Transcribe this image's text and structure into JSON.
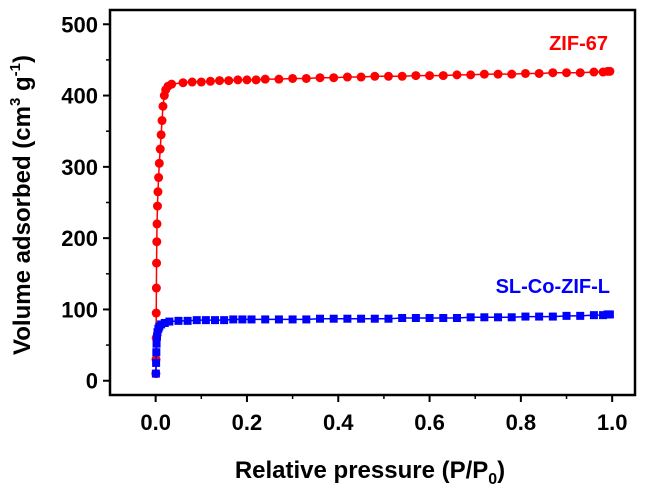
{
  "chart_data": {
    "type": "scatter",
    "title": "",
    "xlabel": {
      "prefix": "Relative pressure (P/P",
      "sub": "0",
      "suffix": ")"
    },
    "ylabel": {
      "prefix": "Volume adsorbed (cm",
      "sup1": "3",
      "mid": " g",
      "sup2": "-1",
      "suffix": ")"
    },
    "xlim": [
      -0.1,
      1.05
    ],
    "ylim": [
      -20,
      520
    ],
    "xticks": [
      "0.0",
      "0.2",
      "0.4",
      "0.6",
      "0.8",
      "1.0"
    ],
    "yticks": [
      "0",
      "100",
      "200",
      "300",
      "400",
      "500"
    ],
    "series": [
      {
        "name": "ZIF-67",
        "color": "#ff0000",
        "marker": "circle",
        "points": [
          [
            0.0005,
            10
          ],
          [
            0.0008,
            30
          ],
          [
            0.001,
            60
          ],
          [
            0.0013,
            95
          ],
          [
            0.0016,
            130
          ],
          [
            0.002,
            165
          ],
          [
            0.0025,
            195
          ],
          [
            0.003,
            220
          ],
          [
            0.004,
            245
          ],
          [
            0.005,
            265
          ],
          [
            0.0065,
            285
          ],
          [
            0.008,
            305
          ],
          [
            0.01,
            325
          ],
          [
            0.012,
            345
          ],
          [
            0.014,
            365
          ],
          [
            0.016,
            385
          ],
          [
            0.019,
            400
          ],
          [
            0.022,
            408
          ],
          [
            0.027,
            413
          ],
          [
            0.035,
            416
          ],
          [
            0.06,
            418
          ],
          [
            0.08,
            419
          ],
          [
            0.1,
            419
          ],
          [
            0.12,
            420
          ],
          [
            0.14,
            421
          ],
          [
            0.16,
            421
          ],
          [
            0.18,
            422
          ],
          [
            0.2,
            422
          ],
          [
            0.22,
            422
          ],
          [
            0.24,
            423
          ],
          [
            0.27,
            423
          ],
          [
            0.3,
            424
          ],
          [
            0.33,
            424
          ],
          [
            0.36,
            425
          ],
          [
            0.39,
            425
          ],
          [
            0.42,
            426
          ],
          [
            0.45,
            426
          ],
          [
            0.48,
            427
          ],
          [
            0.51,
            427
          ],
          [
            0.54,
            427
          ],
          [
            0.57,
            428
          ],
          [
            0.6,
            428
          ],
          [
            0.63,
            428
          ],
          [
            0.66,
            429
          ],
          [
            0.69,
            429
          ],
          [
            0.72,
            430
          ],
          [
            0.75,
            430
          ],
          [
            0.78,
            430
          ],
          [
            0.81,
            431
          ],
          [
            0.84,
            431
          ],
          [
            0.87,
            432
          ],
          [
            0.9,
            432
          ],
          [
            0.93,
            432
          ],
          [
            0.96,
            433
          ],
          [
            0.98,
            433
          ],
          [
            0.99,
            434
          ],
          [
            0.995,
            434
          ]
        ]
      },
      {
        "name": "SL-Co-ZIF-L",
        "color": "#0000ff",
        "marker": "square",
        "points": [
          [
            0.0005,
            10
          ],
          [
            0.001,
            25
          ],
          [
            0.0015,
            40
          ],
          [
            0.002,
            52
          ],
          [
            0.003,
            62
          ],
          [
            0.004,
            68
          ],
          [
            0.006,
            73
          ],
          [
            0.008,
            76
          ],
          [
            0.012,
            79
          ],
          [
            0.02,
            81
          ],
          [
            0.03,
            83
          ],
          [
            0.05,
            84
          ],
          [
            0.07,
            84
          ],
          [
            0.09,
            85
          ],
          [
            0.11,
            85
          ],
          [
            0.13,
            85
          ],
          [
            0.15,
            85
          ],
          [
            0.17,
            86
          ],
          [
            0.19,
            86
          ],
          [
            0.21,
            86
          ],
          [
            0.24,
            86
          ],
          [
            0.27,
            86
          ],
          [
            0.3,
            86
          ],
          [
            0.33,
            86
          ],
          [
            0.36,
            87
          ],
          [
            0.39,
            87
          ],
          [
            0.42,
            87
          ],
          [
            0.45,
            87
          ],
          [
            0.48,
            87
          ],
          [
            0.51,
            87
          ],
          [
            0.54,
            88
          ],
          [
            0.57,
            88
          ],
          [
            0.6,
            88
          ],
          [
            0.63,
            88
          ],
          [
            0.66,
            88
          ],
          [
            0.69,
            89
          ],
          [
            0.72,
            89
          ],
          [
            0.75,
            89
          ],
          [
            0.78,
            89
          ],
          [
            0.81,
            90
          ],
          [
            0.84,
            90
          ],
          [
            0.87,
            90
          ],
          [
            0.9,
            91
          ],
          [
            0.93,
            91
          ],
          [
            0.96,
            92
          ],
          [
            0.98,
            92
          ],
          [
            0.99,
            93
          ],
          [
            0.995,
            93
          ]
        ]
      }
    ]
  }
}
